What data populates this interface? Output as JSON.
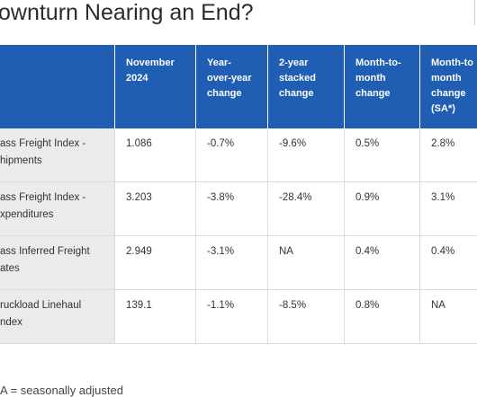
{
  "header": {
    "title": "ownturn Nearing an End?"
  },
  "table": {
    "columns": [
      "",
      "November\n2024",
      "Year-\nover-year\nchange",
      "2-year\nstacked\nchange",
      "Month-to-\nmonth\nchange",
      "Month-to\nmonth\nchange\n(SA*)"
    ],
    "rows": [
      [
        "ass Freight Index -\nhipments",
        "1.086",
        "-0.7%",
        "-9.6%",
        "0.5%",
        "2.8%"
      ],
      [
        "ass Freight Index -\nxpenditures",
        "3.203",
        "-3.8%",
        "-28.4%",
        "0.9%",
        "3.1%"
      ],
      [
        "ass Inferred Freight\nates",
        "2.949",
        "-3.1%",
        "NA",
        "0.4%",
        "0.4%"
      ],
      [
        "ruckload Linehaul\nndex",
        "139.1",
        "-1.1%",
        "-8.5%",
        "0.8%",
        "NA"
      ]
    ]
  },
  "footer": {
    "note": "A = seasonally adjusted"
  }
}
